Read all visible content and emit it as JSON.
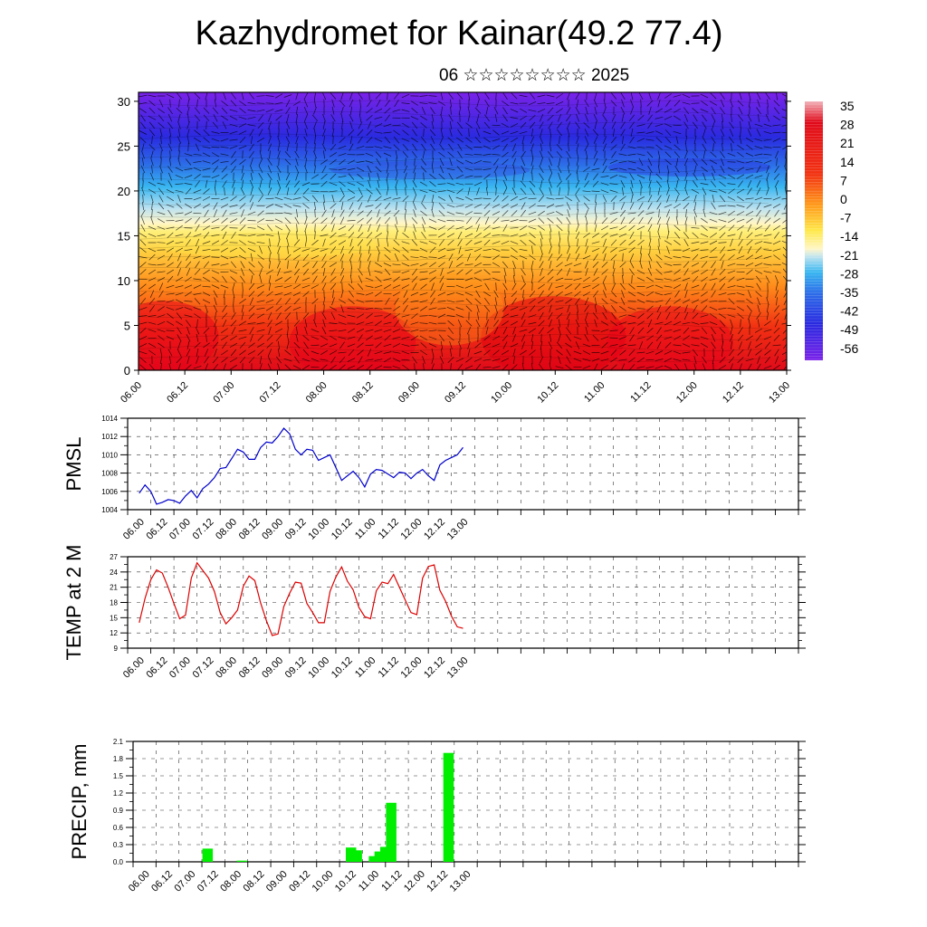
{
  "header": {
    "title": "Kazhydromet for Kainar(49.2 77.4)",
    "subtitle": "06 ☆☆☆☆☆☆☆☆ 2025"
  },
  "time_ticks": [
    "06.00",
    "06.12",
    "07.00",
    "07.12",
    "08.00",
    "08.12",
    "09.00",
    "09.12",
    "10.00",
    "10.12",
    "11.00",
    "11.12",
    "12.00",
    "12.12",
    "13.00"
  ],
  "chart_data": [
    {
      "type": "heatmap",
      "title": "",
      "xlabel": "",
      "ylabel": "",
      "x_ticks": [
        "06.00",
        "06.12",
        "07.00",
        "07.12",
        "08.00",
        "08.12",
        "09.00",
        "09.12",
        "10.00",
        "10.12",
        "11.00",
        "11.12",
        "12.00",
        "12.12",
        "13.00"
      ],
      "y_ticks": [
        0,
        5,
        10,
        15,
        20,
        25,
        30
      ],
      "ylim": [
        0,
        31
      ],
      "colorbar_labels": [
        "35",
        "28",
        "21",
        "14",
        "7",
        "0",
        "-7",
        "-14",
        "-21",
        "-28",
        "-35",
        "-42",
        "-49",
        "-56"
      ],
      "colors": {
        "warm": "#e8001a",
        "orange": "#ff9a1a",
        "yellow": "#ffe94a",
        "cyan": "#38b8f0",
        "blue": "#2a2ae0",
        "violet": "#7a20e8"
      },
      "overlay": "wind arrows"
    },
    {
      "type": "line",
      "ylabel": "PMSL",
      "ylim": [
        1004,
        1014
      ],
      "y_ticks": [
        1004,
        1006,
        1008,
        1010,
        1012,
        1014
      ],
      "color": "#0000cc",
      "x": [
        0,
        3,
        6,
        9,
        12,
        15,
        18,
        21,
        24,
        27,
        30,
        33,
        36,
        39,
        42,
        45,
        48,
        51,
        54,
        57,
        60,
        63,
        66,
        69,
        72,
        75,
        78,
        81,
        84,
        87,
        90,
        93,
        96,
        99,
        102,
        105,
        108,
        111,
        114,
        117,
        120,
        123,
        126,
        129,
        132,
        135,
        138,
        141,
        144,
        147,
        150,
        153,
        156,
        159,
        162,
        165,
        168
      ],
      "values": [
        1005.8,
        1006.7,
        1006.0,
        1004.6,
        1004.8,
        1005.1,
        1005.0,
        1004.7,
        1005.5,
        1006.1,
        1005.3,
        1006.3,
        1006.8,
        1007.5,
        1008.5,
        1008.6,
        1009.6,
        1010.6,
        1010.3,
        1009.5,
        1009.5,
        1010.8,
        1011.4,
        1011.3,
        1012.0,
        1012.9,
        1012.3,
        1010.6,
        1010.0,
        1010.6,
        1010.5,
        1009.4,
        1009.7,
        1010.0,
        1008.6,
        1007.2,
        1007.7,
        1008.2,
        1007.5,
        1006.5,
        1007.9,
        1008.4,
        1008.3,
        1007.9,
        1007.5,
        1008.1,
        1008.0,
        1007.4,
        1008.0,
        1008.4,
        1007.7,
        1007.2,
        1008.9,
        1009.4,
        1009.7,
        1010.0,
        1010.8
      ]
    },
    {
      "type": "line",
      "ylabel": "TEMP at 2 M",
      "ylim": [
        9,
        27
      ],
      "y_ticks": [
        9,
        12,
        15,
        18,
        21,
        24,
        27
      ],
      "color": "#dd0000",
      "x": [
        0,
        3,
        6,
        9,
        12,
        15,
        18,
        21,
        24,
        27,
        30,
        33,
        36,
        39,
        42,
        45,
        48,
        51,
        54,
        57,
        60,
        63,
        66,
        69,
        72,
        75,
        78,
        81,
        84,
        87,
        90,
        93,
        96,
        99,
        102,
        105,
        108,
        111,
        114,
        117,
        120,
        123,
        126,
        129,
        132,
        135,
        138,
        141,
        144,
        147,
        150,
        153,
        156,
        159,
        162,
        165,
        168
      ],
      "values": [
        14.0,
        18.8,
        22.5,
        24.4,
        23.8,
        21.0,
        17.8,
        14.8,
        15.5,
        22.8,
        25.8,
        24.3,
        22.8,
        20.2,
        16.0,
        13.8,
        15.0,
        16.5,
        21.2,
        23.2,
        22.3,
        17.9,
        14.4,
        11.5,
        11.8,
        17.2,
        19.8,
        22.0,
        21.8,
        17.8,
        16.0,
        14.0,
        14.0,
        20.2,
        23.0,
        25.0,
        22.2,
        20.5,
        17.0,
        15.2,
        14.8,
        20.3,
        22.0,
        21.7,
        23.5,
        21.0,
        18.5,
        16.0,
        15.6,
        22.8,
        25.1,
        25.4,
        20.4,
        18.2,
        15.3,
        13.2,
        12.9
      ]
    },
    {
      "type": "bar",
      "ylabel": "PRECIP, mm",
      "ylim": [
        0,
        2.1
      ],
      "y_ticks": [
        "0.0",
        "0.3",
        "0.6",
        "0.9",
        "1.2",
        "1.5",
        "1.8",
        "2.1"
      ],
      "color": "#00ee00",
      "x": [
        33,
        51,
        108,
        111,
        120,
        123,
        126,
        129,
        159
      ],
      "values": [
        0.23,
        0.02,
        0.25,
        0.2,
        0.1,
        0.18,
        0.26,
        1.03,
        1.9
      ]
    }
  ]
}
